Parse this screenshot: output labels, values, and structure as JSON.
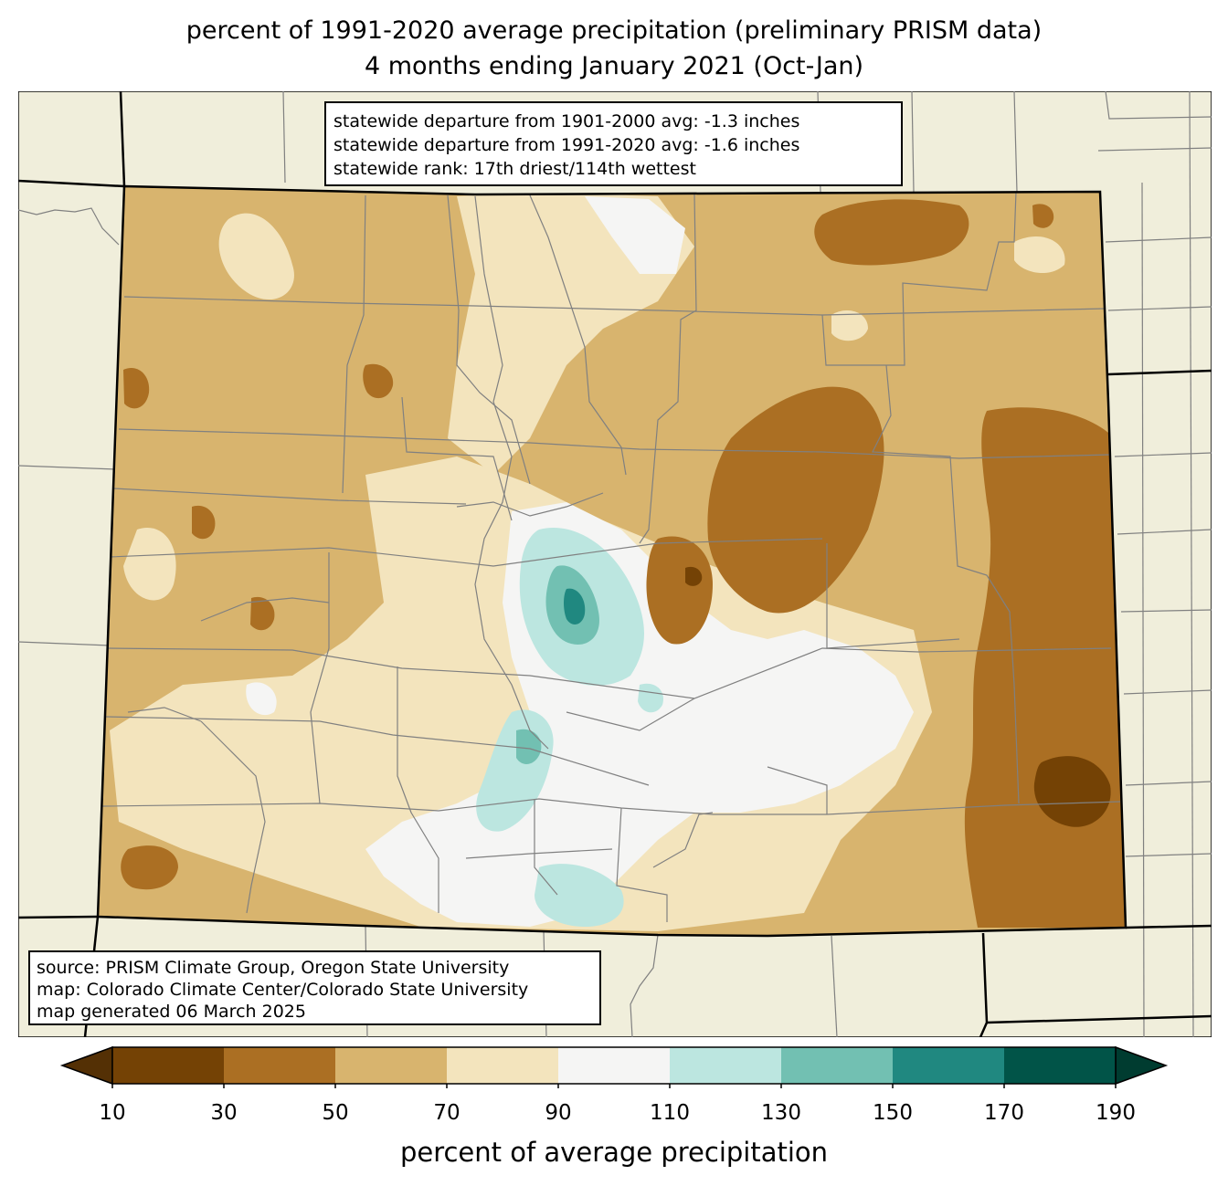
{
  "title": {
    "line1": "percent of 1991-2020 average precipitation (preliminary PRISM data)",
    "line2": "4 months ending January 2021 (Oct-Jan)"
  },
  "stats": [
    "statewide departure from 1901-2000 avg: -1.3 inches",
    "statewide departure from 1991-2020 avg: -1.6 inches",
    "statewide rank: 17th driest/114th wettest"
  ],
  "source": [
    "source: PRISM Climate Group, Oregon State University",
    "map: Colorado Climate Center/Colorado State University",
    "map generated 06 March 2025"
  ],
  "colorbar": {
    "label": "percent of average precipitation",
    "ticks": [
      "10",
      "30",
      "50",
      "70",
      "90",
      "110",
      "130",
      "150",
      "170",
      "190"
    ],
    "under_color": "#543005",
    "over_color": "#003c30",
    "bins": [
      {
        "from": 10,
        "to": 30,
        "color": "#744205"
      },
      {
        "from": 30,
        "to": 50,
        "color": "#ab6f23"
      },
      {
        "from": 50,
        "to": 70,
        "color": "#d8b46e"
      },
      {
        "from": 70,
        "to": 90,
        "color": "#f3e4bd"
      },
      {
        "from": 90,
        "to": 110,
        "color": "#f5f5f4"
      },
      {
        "from": 110,
        "to": 130,
        "color": "#bce6e0"
      },
      {
        "from": 130,
        "to": 150,
        "color": "#72c0b2"
      },
      {
        "from": 150,
        "to": 170,
        "color": "#208880"
      },
      {
        "from": 170,
        "to": 190,
        "color": "#015448"
      }
    ]
  },
  "colors": {
    "land_background": "#f0eedb",
    "state_border": "#000000",
    "county_border": "#808080"
  }
}
